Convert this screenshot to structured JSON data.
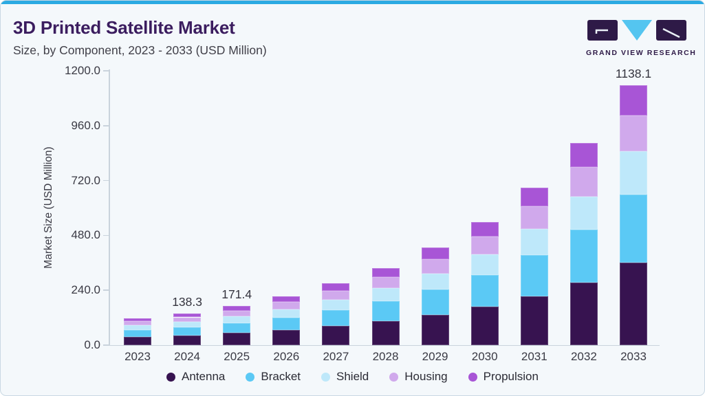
{
  "header": {
    "title": "3D Printed Satellite Market",
    "subtitle": "Size, by Component, 2023 - 2033 (USD Million)"
  },
  "logo": {
    "brand": "GRAND VIEW RESEARCH"
  },
  "colors": {
    "accent": "#2BAAE2",
    "card_background": "#F4F8FB",
    "card_border": "#C9D8E3",
    "title_text": "#3B1D5F",
    "axis_text": "#3A3A44",
    "axis_line": "#C9D3DC"
  },
  "chart_data": {
    "type": "bar",
    "stacked": true,
    "title": "3D Printed Satellite Market Size, by Component, 2023 - 2033 (USD Million)",
    "xlabel": "",
    "ylabel": "Market Size (USD Million)",
    "ylim": [
      0,
      1200
    ],
    "grid": false,
    "legend_position": "bottom",
    "categories": [
      "2023",
      "2024",
      "2025",
      "2026",
      "2027",
      "2028",
      "2029",
      "2030",
      "2031",
      "2032",
      "2033"
    ],
    "series": [
      {
        "name": "Antenna",
        "color": "#371350",
        "values": [
          36.8,
          43.0,
          53.3,
          66.4,
          83.9,
          104.9,
          132.6,
          167.2,
          214.5,
          274.8,
          362.0
        ]
      },
      {
        "name": "Bracket",
        "color": "#5BC9F5",
        "values": [
          30.6,
          35.8,
          44.4,
          55.3,
          69.9,
          87.4,
          110.5,
          139.4,
          178.8,
          229.1,
          298.0
        ]
      },
      {
        "name": "Shield",
        "color": "#BEE8FA",
        "values": [
          19.6,
          22.9,
          28.4,
          35.4,
          44.7,
          55.9,
          70.7,
          89.1,
          114.4,
          146.5,
          188.0
        ]
      },
      {
        "name": "Housing",
        "color": "#D0A9EC",
        "values": [
          17.2,
          20.1,
          24.9,
          31.0,
          39.2,
          48.9,
          61.8,
          78.0,
          100.0,
          128.1,
          156.1
        ]
      },
      {
        "name": "Propulsion",
        "color": "#A855D6",
        "values": [
          14.0,
          16.5,
          20.4,
          25.5,
          32.1,
          40.1,
          50.7,
          63.9,
          82.1,
          105.1,
          134.0
        ]
      }
    ],
    "totals": [
      118.2,
      138.3,
      171.4,
      213.6,
      269.8,
      337.2,
      426.3,
      537.6,
      689.8,
      883.6,
      1138.1
    ],
    "bar_total_labels": [
      "",
      "138.3",
      "171.4",
      "",
      "",
      "",
      "",
      "",
      "",
      "",
      "1138.1"
    ],
    "yticks": [
      {
        "v": 0,
        "label": "0.0"
      },
      {
        "v": 240,
        "label": "240.0"
      },
      {
        "v": 480,
        "label": "480.0"
      },
      {
        "v": 720,
        "label": "720.0"
      },
      {
        "v": 960,
        "label": "960.0"
      },
      {
        "v": 1200,
        "label": "1200.0"
      }
    ]
  }
}
